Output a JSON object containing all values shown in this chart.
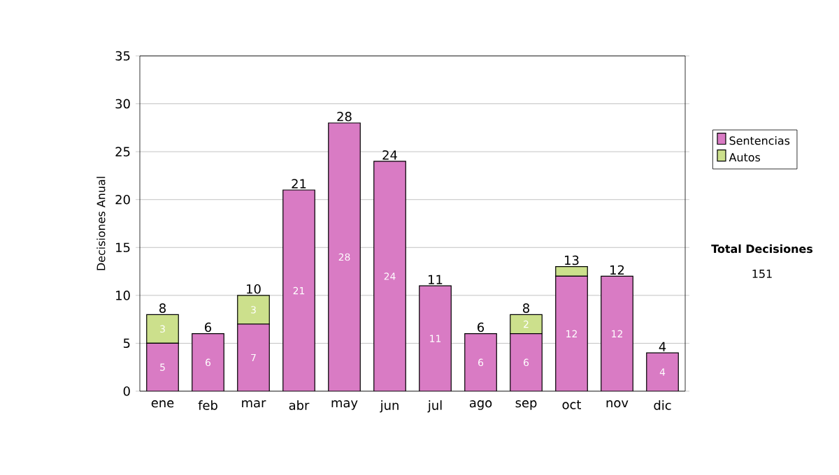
{
  "chart_data": {
    "type": "bar",
    "stacked": true,
    "ylabel": "Decisiones Anual",
    "categories": [
      "ene",
      "feb",
      "mar",
      "abr",
      "may",
      "jun",
      "jul",
      "ago",
      "sep",
      "oct",
      "nov",
      "dic"
    ],
    "series": [
      {
        "name": "Sentencias",
        "color": "#d97bc4",
        "values": [
          5,
          6,
          7,
          21,
          28,
          24,
          11,
          6,
          6,
          12,
          12,
          4
        ],
        "value_labels": [
          "5",
          "6",
          "7",
          "21",
          "28",
          "24",
          "11",
          "6",
          "6",
          "12",
          "12",
          "4"
        ]
      },
      {
        "name": "Autos",
        "color": "#cce08c",
        "values": [
          3,
          0,
          3,
          0,
          0,
          0,
          0,
          0,
          2,
          1,
          0,
          0
        ],
        "value_labels": [
          "3",
          null,
          "3",
          null,
          null,
          null,
          null,
          null,
          "2",
          null,
          null,
          null
        ]
      }
    ],
    "totals": [
      "8",
      "6",
      "10",
      "21",
      "28",
      "24",
      "11",
      "6",
      "8",
      "13",
      "12",
      "4"
    ],
    "ylim": [
      0,
      35
    ],
    "yticks": [
      0,
      5,
      10,
      15,
      20,
      25,
      30,
      35
    ],
    "grid": "y",
    "legend": "right",
    "annotations": [
      "Total Decisiones",
      "151"
    ]
  }
}
